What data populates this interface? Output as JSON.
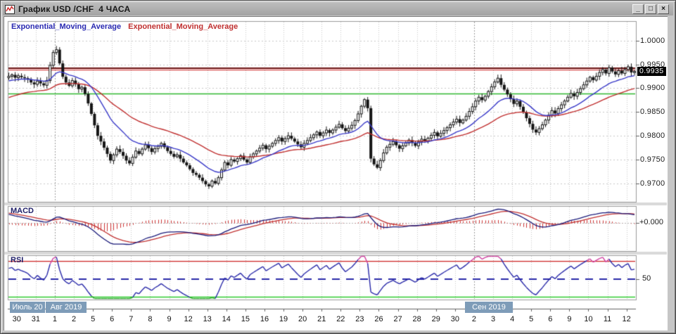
{
  "window": {
    "title": "График USD /CHF  4 ЧАСА",
    "controls": {
      "minimize": "_",
      "maximize": "□",
      "close": "×"
    }
  },
  "main_chart": {
    "legend": [
      {
        "label": "Exponential_Moving_Average",
        "color": "#2a2ab2"
      },
      {
        "label": "Exponential_Moving_Average",
        "color": "#c03030"
      }
    ],
    "current_price_label": "0.9935"
  },
  "panels": {
    "macd_label": "MACD",
    "macd_zero_label": "+0.000",
    "rsi_label": "RSI",
    "rsi_level_label": "50"
  },
  "y_axis": {
    "labels": [
      "1.0000",
      "0.9950",
      "0.9900",
      "0.9850",
      "0.9800",
      "0.9750",
      "0.9700"
    ],
    "values": [
      1.0,
      0.995,
      0.99,
      0.985,
      0.98,
      0.975,
      0.97
    ]
  },
  "x_axis": {
    "date_labels": [
      "30",
      "31",
      "1",
      "2",
      "5",
      "6",
      "7",
      "8",
      "9",
      "12",
      "13",
      "14",
      "15",
      "16",
      "19",
      "20",
      "21",
      "22",
      "23",
      "26",
      "27",
      "28",
      "29",
      "30",
      "2",
      "3",
      "4",
      "5",
      "6",
      "9",
      "10",
      "11",
      "12"
    ],
    "month_markers": [
      {
        "label": "Июль 20"
      },
      {
        "label": "Авг 2019"
      },
      {
        "label": "Сен 2019"
      }
    ],
    "month_start_indices": [
      2,
      24
    ]
  },
  "chart_data": {
    "type": "candlestick",
    "symbol": "USD/CHF",
    "timeframe": "4 ЧАСА",
    "candles_per_day": 6,
    "first_open": 0.9922,
    "closes": [
      0.9925,
      0.9928,
      0.9922,
      0.9926,
      0.9923,
      0.9921,
      0.9918,
      0.9912,
      0.9908,
      0.9915,
      0.991,
      0.9906,
      0.9916,
      0.9948,
      0.9975,
      0.9981,
      0.9952,
      0.9924,
      0.9912,
      0.9905,
      0.9916,
      0.9908,
      0.9898,
      0.9902,
      0.9888,
      0.9868,
      0.9846,
      0.9822,
      0.98,
      0.9788,
      0.9775,
      0.9762,
      0.9748,
      0.976,
      0.9772,
      0.9766,
      0.9758,
      0.9748,
      0.9742,
      0.9755,
      0.9768,
      0.9762,
      0.9772,
      0.9781,
      0.9774,
      0.9766,
      0.9773,
      0.9778,
      0.9784,
      0.9776,
      0.9768,
      0.9762,
      0.9756,
      0.976,
      0.9752,
      0.9744,
      0.9738,
      0.973,
      0.9722,
      0.9718,
      0.9712,
      0.9705,
      0.9698,
      0.9694,
      0.9705,
      0.97,
      0.9712,
      0.9728,
      0.9744,
      0.9738,
      0.975,
      0.9746,
      0.9752,
      0.9758,
      0.975,
      0.9744,
      0.9756,
      0.9762,
      0.9768,
      0.9774,
      0.978,
      0.9772,
      0.9778,
      0.9784,
      0.979,
      0.9796,
      0.9788,
      0.9794,
      0.98,
      0.9794,
      0.9788,
      0.9782,
      0.9776,
      0.9784,
      0.979,
      0.9796,
      0.9802,
      0.9808,
      0.98,
      0.9806,
      0.9812,
      0.9806,
      0.9812,
      0.9818,
      0.9824,
      0.9816,
      0.981,
      0.9816,
      0.9822,
      0.9832,
      0.9846,
      0.9862,
      0.9876,
      0.9858,
      0.9752,
      0.974,
      0.9733,
      0.9748,
      0.9764,
      0.9776,
      0.9782,
      0.9788,
      0.978,
      0.9773,
      0.9779,
      0.9785,
      0.9791,
      0.9785,
      0.9779,
      0.9787,
      0.9793,
      0.9789,
      0.9795,
      0.9801,
      0.9807,
      0.9799,
      0.9805,
      0.9811,
      0.9817,
      0.9823,
      0.9829,
      0.9835,
      0.9827,
      0.9833,
      0.9841,
      0.9851,
      0.9861,
      0.9873,
      0.9881,
      0.9875,
      0.9883,
      0.9893,
      0.9903,
      0.9913,
      0.9921,
      0.9907,
      0.9897,
      0.9887,
      0.9877,
      0.9867,
      0.9873,
      0.9861,
      0.9849,
      0.9837,
      0.9825,
      0.9813,
      0.9807,
      0.9815,
      0.9823,
      0.9833,
      0.9843,
      0.9853,
      0.9847,
      0.9857,
      0.9865,
      0.9873,
      0.9881,
      0.9889,
      0.9883,
      0.9891,
      0.9899,
      0.9907,
      0.9915,
      0.9923,
      0.9917,
      0.9925,
      0.9933,
      0.9939,
      0.9931,
      0.9943,
      0.9935,
      0.9929,
      0.9937,
      0.9931,
      0.9939,
      0.9945,
      0.9933,
      0.9935
    ],
    "current_price": 0.9935,
    "hlines": [
      {
        "price": 0.9942,
        "color": "#6b0f0f",
        "width": 2
      },
      {
        "price": 0.9938,
        "color": "#cc2222",
        "width": 1
      },
      {
        "price": 0.9888,
        "color": "#2eb82e",
        "width": 1.5
      }
    ],
    "overlays": [
      {
        "name": "Exponential_Moving_Average",
        "period": 16,
        "seed": 0.9914,
        "color": "#3a3ac8"
      },
      {
        "name": "Exponential_Moving_Average",
        "period": 40,
        "seed": 0.9878,
        "color": "#c03030"
      }
    ],
    "macd": {
      "fast": 12,
      "slow": 26,
      "signal": 9,
      "seed_fast": 0.993,
      "seed_slow": 0.991,
      "seed_signal": 0.0021,
      "line_color": "#181878",
      "signal_color": "#c03030",
      "hist_color": "#cc3333",
      "zero_color": "#b5b5b5"
    },
    "rsi": {
      "period": 14,
      "seed_gain": 0.00055,
      "seed_loss": 0.00035,
      "levels": [
        70,
        50,
        30
      ],
      "line_color": "#2828a8",
      "overbought_color": "#d040a0",
      "oversold_color": "#2aa82a",
      "level_colors": [
        "#cc2222",
        "#2828a8",
        "#2ecc2e"
      ]
    }
  }
}
